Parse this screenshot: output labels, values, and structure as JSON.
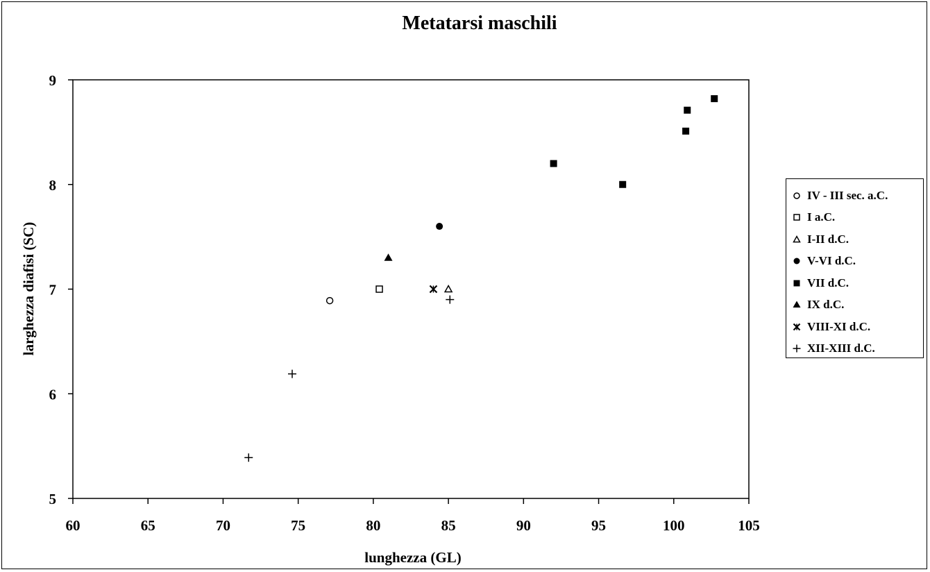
{
  "chart_data": {
    "type": "scatter",
    "title": "Metatarsi maschili",
    "xlabel": "lunghezza (GL)",
    "ylabel": "larghezza diafisi (SC)",
    "xlim": [
      60,
      105
    ],
    "ylim": [
      5,
      9
    ],
    "xticks": [
      "60",
      "65",
      "70",
      "75",
      "80",
      "85",
      "90",
      "95",
      "100",
      "105"
    ],
    "yticks": [
      "5",
      "6",
      "7",
      "8",
      "9"
    ],
    "grid": false,
    "legend_position": "right",
    "series": [
      {
        "name": "IV - III sec. a.C.",
        "marker": "open-circle",
        "points": [
          [
            77.1,
            6.89
          ]
        ]
      },
      {
        "name": "I a.C.",
        "marker": "open-square",
        "points": [
          [
            80.4,
            7.0
          ]
        ]
      },
      {
        "name": "I-II d.C.",
        "marker": "open-triangle",
        "points": [
          [
            85.0,
            7.0
          ]
        ]
      },
      {
        "name": "V-VI d.C.",
        "marker": "filled-circle",
        "points": [
          [
            84.4,
            7.6
          ]
        ]
      },
      {
        "name": "VII d.C.",
        "marker": "filled-square",
        "points": [
          [
            92.0,
            8.2
          ],
          [
            96.6,
            8.0
          ],
          [
            100.8,
            8.51
          ],
          [
            100.9,
            8.71
          ],
          [
            102.7,
            8.82
          ]
        ]
      },
      {
        "name": "IX d.C.",
        "marker": "filled-triangle",
        "points": [
          [
            81.0,
            7.3
          ]
        ]
      },
      {
        "name": "VIII-XI d.C.",
        "marker": "star-x",
        "points": [
          [
            84.0,
            7.0
          ]
        ]
      },
      {
        "name": "XII-XIII d.C.",
        "marker": "plus",
        "points": [
          [
            71.7,
            5.39
          ],
          [
            74.6,
            6.19
          ],
          [
            85.1,
            6.9
          ]
        ]
      }
    ]
  }
}
